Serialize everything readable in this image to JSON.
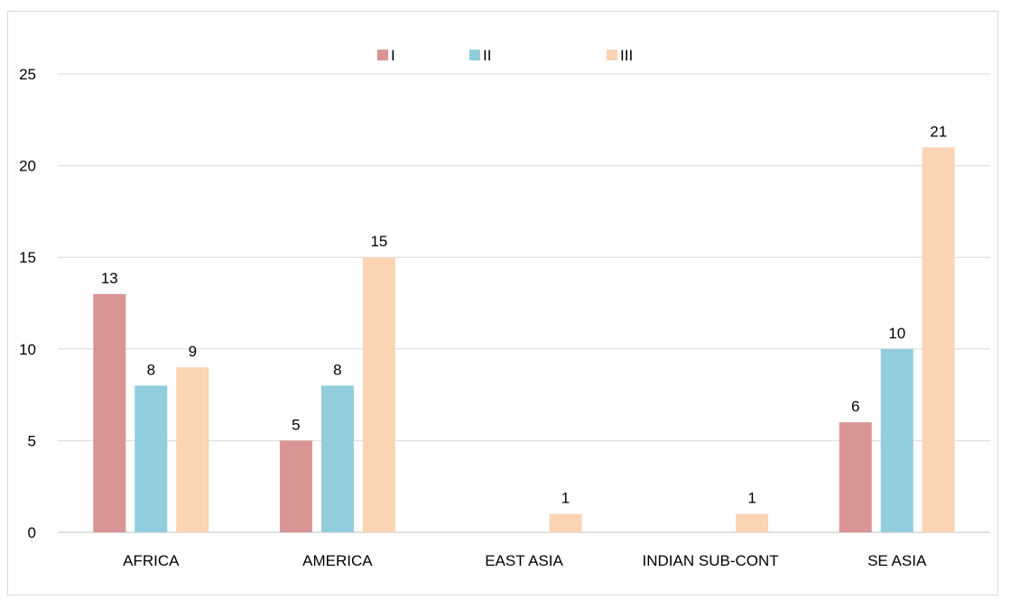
{
  "chart_data": {
    "type": "bar",
    "title": "",
    "xlabel": "",
    "ylabel": "",
    "categories": [
      "AFRICA",
      "AMERICA",
      "EAST ASIA",
      "INDIAN SUB-CONT",
      "SE ASIA"
    ],
    "series": [
      {
        "name": "I",
        "color": "#d99594",
        "values": [
          13,
          5,
          0,
          0,
          6
        ]
      },
      {
        "name": "II",
        "color": "#92cddc",
        "values": [
          8,
          8,
          0,
          0,
          10
        ]
      },
      {
        "name": "III",
        "color": "#fbd4b4",
        "values": [
          9,
          15,
          1,
          1,
          21
        ]
      }
    ],
    "ylim": [
      0,
      25
    ],
    "yticks": [
      "0",
      "5",
      "10",
      "15",
      "20",
      "25"
    ],
    "grid": true,
    "legend_position": "top"
  }
}
